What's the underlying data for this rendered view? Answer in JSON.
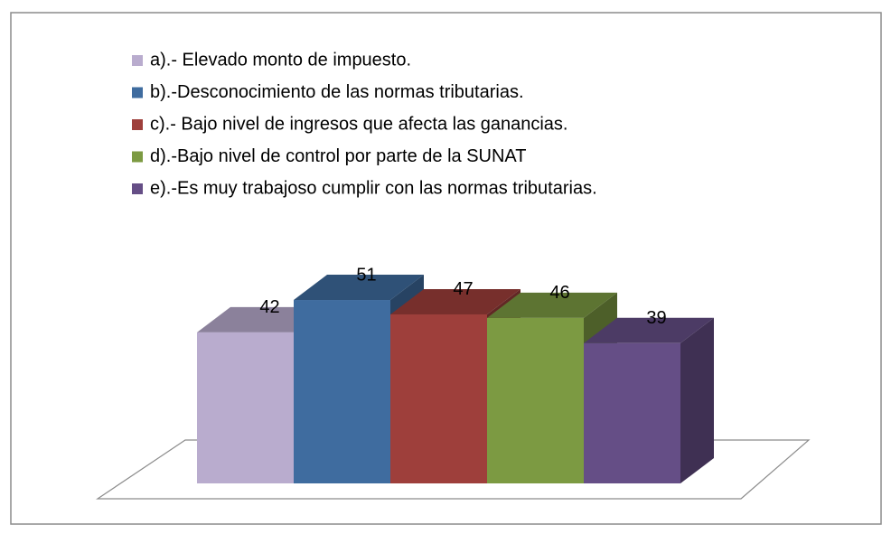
{
  "chart_data": {
    "type": "bar3d",
    "series": [
      {
        "name": "a).- Elevado monto de impuesto.",
        "color": "#b9acce",
        "values": [
          42
        ]
      },
      {
        "name": "b).-Desconocimiento de las normas tributarias.",
        "color": "#3f6c9f",
        "values": [
          51
        ]
      },
      {
        "name": "c).- Bajo nivel de ingresos que afecta las ganancias.",
        "color": "#9e3f3b",
        "values": [
          47
        ]
      },
      {
        "name": "d).-Bajo nivel de control por parte de la SUNAT",
        "color": "#7c9a42",
        "values": [
          46
        ]
      },
      {
        "name": "e).-Es muy trabajoso cumplir con las normas tributarias.",
        "color": "#654e86",
        "values": [
          39
        ]
      }
    ],
    "legend": "top-left"
  }
}
